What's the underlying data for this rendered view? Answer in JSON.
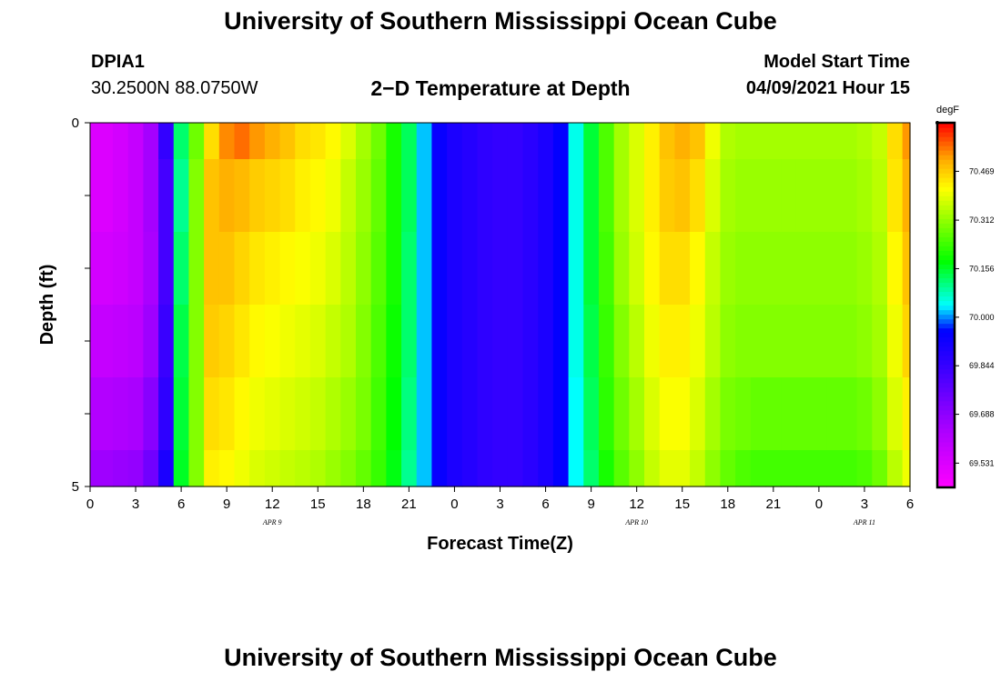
{
  "header": {
    "title_top": "University of Southern Mississippi Ocean Cube",
    "station_id": "DPIA1",
    "station_coords": "30.2500N  88.0750W",
    "plot_title": "2−D Temperature at Depth",
    "model_start_label": "Model Start Time",
    "model_start_value": "04/09/2021 Hour 15",
    "title_bottom": "University of Southern Mississippi Ocean Cube"
  },
  "chart_data": {
    "type": "heatmap",
    "title": "2−D Temperature at Depth",
    "xlabel": "Forecast Time(Z)",
    "ylabel": "Depth (ft)",
    "x_tick_labels": [
      "0",
      "3",
      "6",
      "9",
      "12",
      "15",
      "18",
      "21",
      "0",
      "3",
      "6",
      "9",
      "12",
      "15",
      "18",
      "21",
      "0",
      "3",
      "6"
    ],
    "date_labels": [
      {
        "label": "APR  9",
        "at_tick": 4
      },
      {
        "label": "APR  10",
        "at_tick": 12
      },
      {
        "label": "APR  11",
        "at_tick": 17
      }
    ],
    "y_tick_labels": [
      {
        "depth": 0,
        "label": "0"
      },
      {
        "depth": 5,
        "label": "5"
      }
    ],
    "ylim": [
      0,
      5
    ],
    "depth_levels": [
      0,
      1,
      2,
      3,
      4,
      5
    ],
    "time_hours": [
      0,
      1,
      2,
      3,
      4,
      5,
      6,
      7,
      8,
      9,
      10,
      11,
      12,
      13,
      14,
      15,
      16,
      17,
      18,
      19,
      20,
      21,
      22,
      23,
      24,
      25,
      26,
      27,
      28,
      29,
      30,
      31,
      32,
      33,
      34,
      35,
      36,
      37,
      38,
      39,
      40,
      41,
      42,
      43,
      44,
      45,
      46,
      47,
      48,
      49,
      50,
      51,
      52,
      53,
      54
    ],
    "temperature_degF_by_depth": [
      [
        69.53,
        69.53,
        69.55,
        69.58,
        69.65,
        69.85,
        70.12,
        70.28,
        70.45,
        70.53,
        70.55,
        70.52,
        70.5,
        70.48,
        70.45,
        70.44,
        70.42,
        70.38,
        70.33,
        70.28,
        70.2,
        70.13,
        70.02,
        69.94,
        69.9,
        69.88,
        69.86,
        69.85,
        69.85,
        69.87,
        69.9,
        69.95,
        70.05,
        70.15,
        70.25,
        70.33,
        70.38,
        70.43,
        70.48,
        70.5,
        70.48,
        70.4,
        70.34,
        70.33,
        70.33,
        70.33,
        70.33,
        70.33,
        70.33,
        70.33,
        70.33,
        70.34,
        70.36,
        70.45,
        70.52
      ],
      [
        69.53,
        69.53,
        69.55,
        69.58,
        69.65,
        69.82,
        70.1,
        70.3,
        70.48,
        70.5,
        70.49,
        70.47,
        70.46,
        70.45,
        70.43,
        70.42,
        70.4,
        70.36,
        70.32,
        70.27,
        70.2,
        70.13,
        70.02,
        69.94,
        69.9,
        69.88,
        69.86,
        69.85,
        69.85,
        69.87,
        69.9,
        69.95,
        70.05,
        70.15,
        70.25,
        70.33,
        70.38,
        70.43,
        70.47,
        70.48,
        70.45,
        70.38,
        70.33,
        70.32,
        70.32,
        70.32,
        70.32,
        70.32,
        70.32,
        70.32,
        70.32,
        70.33,
        70.35,
        70.44,
        70.5
      ],
      [
        69.55,
        69.55,
        69.56,
        69.58,
        69.64,
        69.82,
        70.12,
        70.3,
        70.48,
        70.48,
        70.46,
        70.44,
        70.43,
        70.42,
        70.41,
        70.4,
        70.38,
        70.35,
        70.31,
        70.26,
        70.2,
        70.12,
        70.02,
        69.94,
        69.9,
        69.88,
        69.86,
        69.85,
        69.85,
        69.87,
        69.9,
        69.95,
        70.05,
        70.15,
        70.24,
        70.32,
        70.37,
        70.42,
        70.45,
        70.45,
        70.42,
        70.36,
        70.32,
        70.31,
        70.31,
        70.31,
        70.31,
        70.31,
        70.31,
        70.31,
        70.31,
        70.32,
        70.34,
        70.42,
        70.48
      ],
      [
        69.58,
        69.58,
        69.59,
        69.6,
        69.66,
        69.84,
        70.14,
        70.3,
        70.47,
        70.46,
        70.44,
        70.42,
        70.41,
        70.4,
        70.39,
        70.38,
        70.36,
        70.34,
        70.3,
        70.25,
        70.19,
        70.12,
        70.02,
        69.94,
        69.9,
        69.88,
        69.86,
        69.85,
        69.85,
        69.87,
        69.9,
        69.95,
        70.05,
        70.14,
        70.23,
        70.3,
        70.35,
        70.4,
        70.43,
        70.43,
        70.4,
        70.35,
        70.31,
        70.3,
        70.3,
        70.3,
        70.3,
        70.3,
        70.3,
        70.3,
        70.3,
        70.31,
        70.33,
        70.4,
        70.46
      ],
      [
        69.62,
        69.62,
        69.63,
        69.64,
        69.7,
        69.86,
        70.15,
        70.3,
        70.45,
        70.44,
        70.42,
        70.4,
        70.39,
        70.38,
        70.37,
        70.36,
        70.34,
        70.32,
        70.29,
        70.24,
        70.18,
        70.11,
        70.02,
        69.94,
        69.9,
        69.88,
        69.86,
        69.85,
        69.85,
        69.87,
        69.9,
        69.95,
        70.04,
        70.13,
        70.22,
        70.28,
        70.33,
        70.38,
        70.41,
        70.41,
        70.38,
        70.33,
        70.29,
        70.28,
        70.27,
        70.27,
        70.27,
        70.27,
        70.27,
        70.27,
        70.27,
        70.28,
        70.31,
        70.38,
        70.43
      ],
      [
        69.66,
        69.66,
        69.67,
        69.68,
        69.74,
        69.9,
        70.16,
        70.3,
        70.43,
        70.42,
        70.4,
        70.38,
        70.37,
        70.36,
        70.35,
        70.34,
        70.32,
        70.3,
        70.27,
        70.23,
        70.17,
        70.1,
        70.02,
        69.94,
        69.9,
        69.88,
        69.86,
        69.85,
        69.85,
        69.87,
        69.9,
        69.95,
        70.04,
        70.12,
        70.2,
        70.26,
        70.31,
        70.36,
        70.39,
        70.39,
        70.36,
        70.31,
        70.27,
        70.25,
        70.24,
        70.24,
        70.24,
        70.24,
        70.24,
        70.24,
        70.24,
        70.25,
        70.28,
        70.35,
        70.4
      ]
    ],
    "colorbar": {
      "unit": "degF",
      "min": 69.453,
      "max": 70.625,
      "tick_labels": [
        "69.531",
        "69.688",
        "69.844",
        "70.000",
        "70.156",
        "70.312",
        "70.469"
      ],
      "tick_values": [
        69.531,
        69.688,
        69.844,
        70.0,
        70.156,
        70.312,
        70.469
      ]
    }
  }
}
